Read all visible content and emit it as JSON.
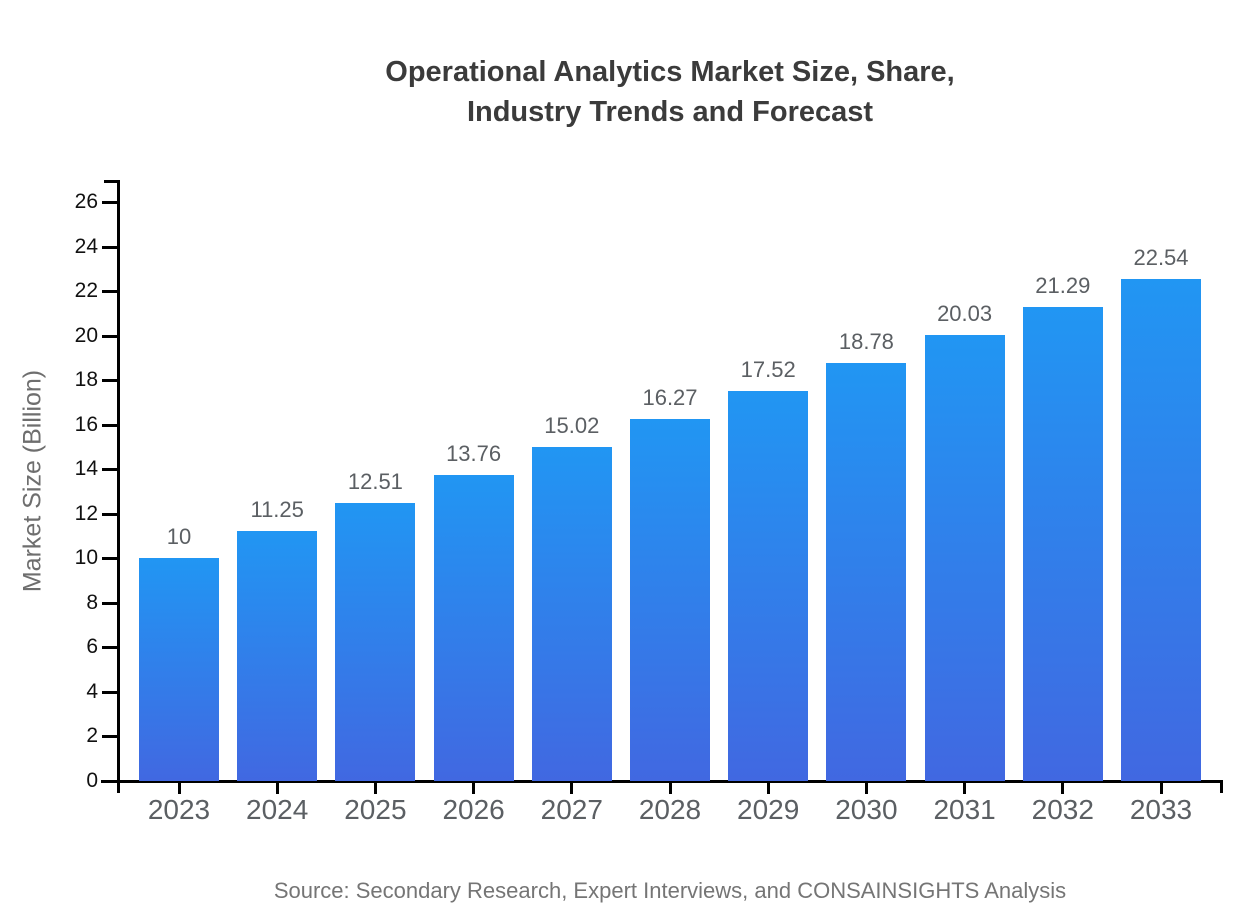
{
  "title": {
    "line1": "Operational Analytics Market Size, Share,",
    "line2": "Industry Trends and Forecast"
  },
  "source_note": "Source: Secondary Research, Expert Interviews, and CONSAINSIGHTS Analysis",
  "chart_data": {
    "type": "bar",
    "title": "Operational Analytics Market Size, Share, Industry Trends and Forecast",
    "categories": [
      "2023",
      "2024",
      "2025",
      "2026",
      "2027",
      "2028",
      "2029",
      "2030",
      "2031",
      "2032",
      "2033"
    ],
    "values": [
      10,
      11.25,
      12.51,
      13.76,
      15.02,
      16.27,
      17.52,
      18.78,
      20.03,
      21.29,
      22.54
    ],
    "value_labels": [
      "10",
      "11.25",
      "12.51",
      "13.76",
      "15.02",
      "16.27",
      "17.52",
      "18.78",
      "20.03",
      "21.29",
      "22.54"
    ],
    "xlabel": "",
    "ylabel": "Market Size (Billion)",
    "ylim": [
      0,
      27
    ],
    "yticks": [
      0,
      2,
      4,
      6,
      8,
      10,
      12,
      14,
      16,
      18,
      20,
      22,
      24,
      26
    ],
    "grid": false,
    "legend": false,
    "colors": {
      "bar_gradient_top": "#2196f3",
      "bar_gradient_bottom": "#4168e1",
      "axis": "#000000",
      "y_tick_label": "#111111",
      "x_tick_label": "#5b5f63",
      "value_label": "#5b5f63",
      "title": "#3b3b3b",
      "ylabel": "#6e6e6e",
      "source": "#757575"
    }
  }
}
